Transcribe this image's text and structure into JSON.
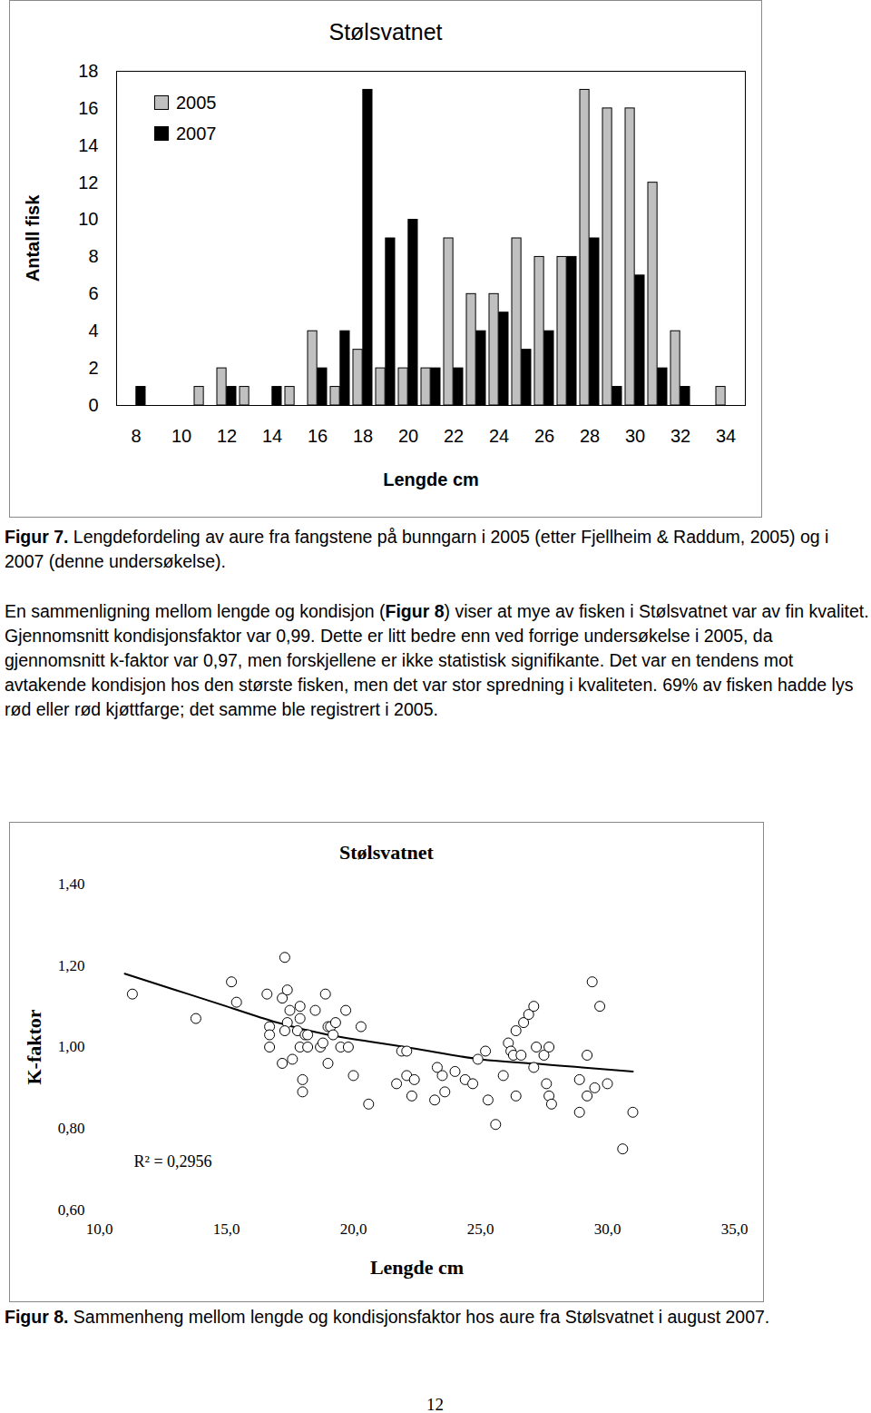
{
  "chart_data": [
    {
      "type": "bar",
      "title": "Stølsvatnet",
      "x_label": "Lengde cm",
      "y_label": "Antall fisk",
      "categories": [
        8,
        9,
        10,
        11,
        12,
        13,
        14,
        15,
        16,
        17,
        18,
        19,
        20,
        21,
        22,
        23,
        24,
        25,
        26,
        27,
        28,
        29,
        30,
        31,
        32,
        33,
        34
      ],
      "xticks": [
        8,
        10,
        12,
        14,
        16,
        18,
        20,
        22,
        24,
        26,
        28,
        30,
        32,
        34
      ],
      "series": [
        {
          "name": "2005",
          "color": "#c0c0c0",
          "values": [
            0,
            0,
            0,
            1,
            2,
            1,
            0,
            1,
            4,
            1,
            3,
            2,
            2,
            2,
            9,
            6,
            6,
            9,
            8,
            8,
            17,
            16,
            16,
            12,
            4,
            0,
            1
          ]
        },
        {
          "name": "2007",
          "color": "#000000",
          "values": [
            1,
            0,
            0,
            0,
            1,
            0,
            1,
            0,
            2,
            4,
            17,
            9,
            10,
            2,
            2,
            4,
            5,
            3,
            4,
            8,
            9,
            1,
            7,
            2,
            1,
            0,
            0
          ]
        }
      ],
      "ylim": [
        0,
        18
      ],
      "yticks": [
        0,
        2,
        4,
        6,
        8,
        10,
        12,
        14,
        16,
        18
      ],
      "legend": "top-left",
      "grid": false
    },
    {
      "type": "scatter",
      "title": "Stølsvatnet",
      "x_label": "Lengde cm",
      "y_label": "K-faktor",
      "marker": "circle",
      "color": "#000000",
      "x": [
        11.3,
        13.8,
        15.2,
        15.4,
        16.6,
        16.7,
        16.7,
        16.7,
        17.2,
        17.2,
        17.3,
        17.4,
        17.4,
        17.3,
        17.5,
        17.6,
        17.8,
        17.9,
        17.9,
        17.9,
        18.0,
        18.0,
        18.1,
        18.2,
        18.2,
        18.5,
        18.7,
        18.8,
        18.9,
        19.0,
        19.0,
        19.1,
        19.2,
        19.3,
        19.5,
        19.7,
        19.8,
        20.0,
        20.3,
        20.6,
        21.7,
        21.9,
        22.1,
        22.1,
        22.3,
        22.4,
        23.2,
        23.3,
        23.5,
        23.6,
        24.0,
        24.4,
        24.7,
        24.9,
        25.2,
        25.3,
        25.6,
        25.9,
        26.1,
        26.2,
        26.3,
        26.4,
        26.4,
        26.6,
        26.7,
        26.9,
        27.1,
        27.1,
        27.2,
        27.5,
        27.6,
        27.7,
        27.7,
        27.8,
        28.9,
        28.9,
        29.2,
        29.2,
        29.4,
        29.5,
        29.7,
        30.0,
        30.6,
        31.0
      ],
      "values": [
        1.13,
        1.07,
        1.16,
        1.11,
        1.13,
        1.05,
        1.03,
        1.0,
        0.96,
        1.12,
        1.22,
        1.14,
        1.06,
        1.04,
        1.09,
        0.97,
        1.04,
        1.1,
        1.07,
        1.0,
        0.92,
        0.89,
        1.03,
        1.03,
        1.0,
        1.09,
        1.0,
        1.01,
        1.13,
        0.96,
        1.05,
        1.05,
        1.03,
        1.06,
        1.0,
        1.09,
        1.0,
        0.93,
        1.05,
        0.86,
        0.91,
        0.99,
        0.99,
        0.93,
        0.88,
        0.92,
        0.87,
        0.95,
        0.93,
        0.89,
        0.94,
        0.92,
        0.91,
        0.97,
        0.99,
        0.87,
        0.81,
        0.93,
        1.01,
        0.99,
        0.98,
        0.88,
        1.04,
        0.98,
        1.06,
        1.08,
        1.1,
        0.95,
        1.0,
        0.98,
        0.91,
        0.88,
        1.0,
        0.86,
        0.92,
        0.84,
        0.98,
        0.88,
        1.16,
        0.9,
        1.1,
        0.91,
        0.75,
        0.84
      ],
      "trend": {
        "type": "line",
        "color": "#000000",
        "line_style": "solid",
        "x": [
          11,
          13,
          15,
          17,
          19,
          21,
          23,
          25,
          27,
          29,
          31
        ],
        "values": [
          1.18,
          1.14,
          1.1,
          1.06,
          1.03,
          1.01,
          0.99,
          0.97,
          0.96,
          0.95,
          0.94
        ]
      },
      "annotations": [
        "R² = 0,2956"
      ],
      "xlim": [
        10,
        35
      ],
      "xticks": [
        {
          "value": 10,
          "label": "10,0"
        },
        {
          "value": 15,
          "label": "15,0"
        },
        {
          "value": 20,
          "label": "20,0"
        },
        {
          "value": 25,
          "label": "25,0"
        },
        {
          "value": 30,
          "label": "30,0"
        },
        {
          "value": 35,
          "label": "35,0"
        }
      ],
      "ylim": [
        0.6,
        1.4
      ],
      "yticks": [
        {
          "value": 0.6,
          "label": "0,60"
        },
        {
          "value": 0.8,
          "label": "0,80"
        },
        {
          "value": 1.0,
          "label": "1,00"
        },
        {
          "value": 1.2,
          "label": "1,20"
        },
        {
          "value": 1.4,
          "label": "1,40"
        }
      ],
      "grid": false
    }
  ],
  "document": {
    "figure_7_caption": {
      "label": "Figur 7.",
      "text": " Lengdefordeling av aure fra fangstene på bunngarn i 2005 (etter Fjellheim & Raddum, 2005) og i 2007 (denne undersøkelse)."
    },
    "paragraph": [
      {
        "text": "En sammenligning mellom lengde og kondisjon ("
      },
      {
        "text": "Figur 8",
        "bold": true
      },
      {
        "text": ") viser at mye av fisken i Stølsvatnet var av fin kvalitet. Gjennomsnitt kondisjonsfaktor var 0,99. Dette er litt bedre enn ved forrige undersøkelse i 2005, da gjennomsnitt k-faktor var 0,97, men forskjellene er ikke statistisk signifikante. Det var en tendens mot avtakende kondisjon hos den største fisken, men det var stor spredning i kvaliteten. 69% av fisken hadde lys rød eller rød kjøttfarge; det samme ble registrert i 2005."
      }
    ],
    "figure_8_caption": {
      "label": "Figur 8.",
      "text": " Sammenheng mellom lengde og kondisjonsfaktor hos aure fra Stølsvatnet i august 2007."
    },
    "page_number": "12"
  }
}
